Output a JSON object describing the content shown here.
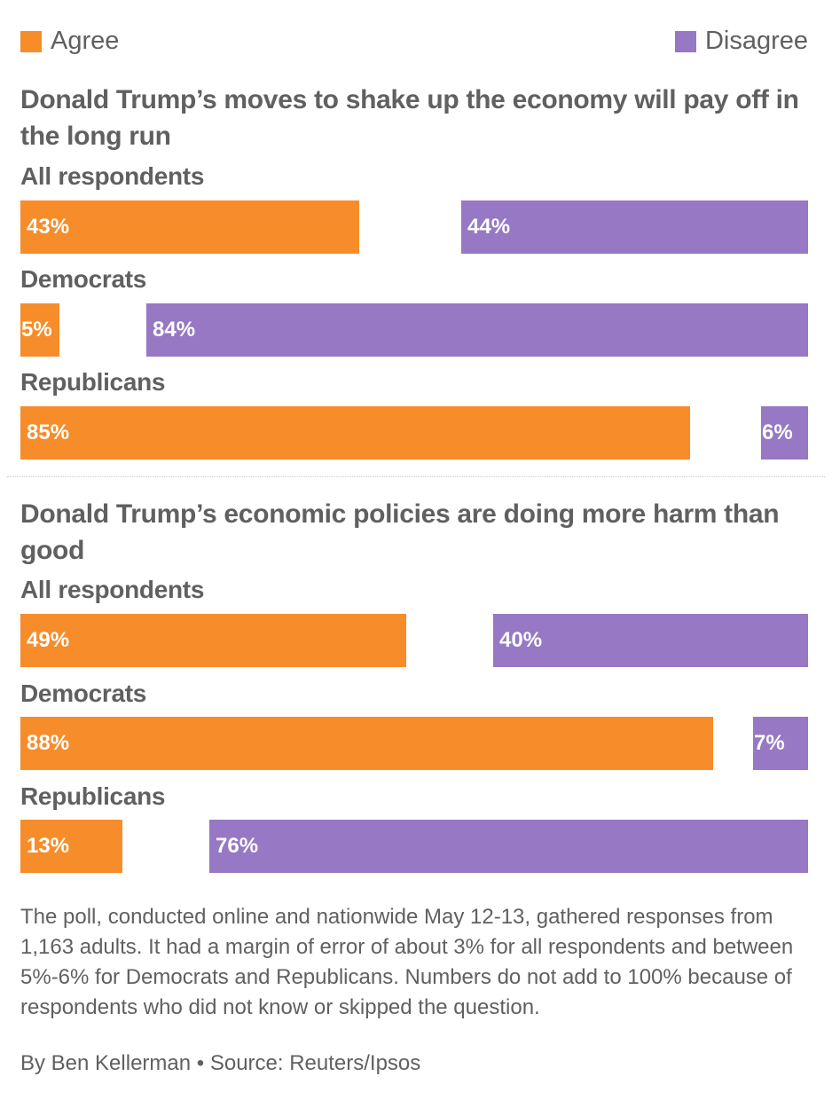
{
  "colors": {
    "agree": "#F68D2A",
    "disagree": "#9678C4",
    "text": "#606060"
  },
  "legend": {
    "agree": "Agree",
    "disagree": "Disagree"
  },
  "chart_data": [
    {
      "type": "bar",
      "title": "Donald Trump’s moves to shake up the economy will pay off in the long run",
      "categories": [
        "All respondents",
        "Democrats",
        "Republicans"
      ],
      "series": [
        {
          "name": "Agree",
          "values": [
            43,
            5,
            85
          ],
          "labels": [
            "43%",
            "5%",
            "85%"
          ]
        },
        {
          "name": "Disagree",
          "values": [
            44,
            84,
            6
          ],
          "labels": [
            "44%",
            "84%",
            "6%"
          ]
        }
      ],
      "xlim": [
        0,
        100
      ],
      "legend": "top"
    },
    {
      "type": "bar",
      "title": "Donald Trump’s economic policies are doing more harm than good",
      "categories": [
        "All respondents",
        "Democrats",
        "Republicans"
      ],
      "series": [
        {
          "name": "Agree",
          "values": [
            49,
            88,
            13
          ],
          "labels": [
            "49%",
            "88%",
            "13%"
          ]
        },
        {
          "name": "Disagree",
          "values": [
            40,
            7,
            76
          ],
          "labels": [
            "40%",
            "7%",
            "76%"
          ]
        }
      ],
      "xlim": [
        0,
        100
      ],
      "legend": "top"
    }
  ],
  "footer": {
    "note": "The poll, conducted online and nationwide May 12-13, gathered responses from 1,163 adults. It had a margin of error of about 3% for all respondents and between 5%-6% for Democrats and Republicans. Numbers do not add to 100% because of respondents who did not know or skipped the question.",
    "credit": "By Ben Kellerman • Source: Reuters/Ipsos"
  }
}
